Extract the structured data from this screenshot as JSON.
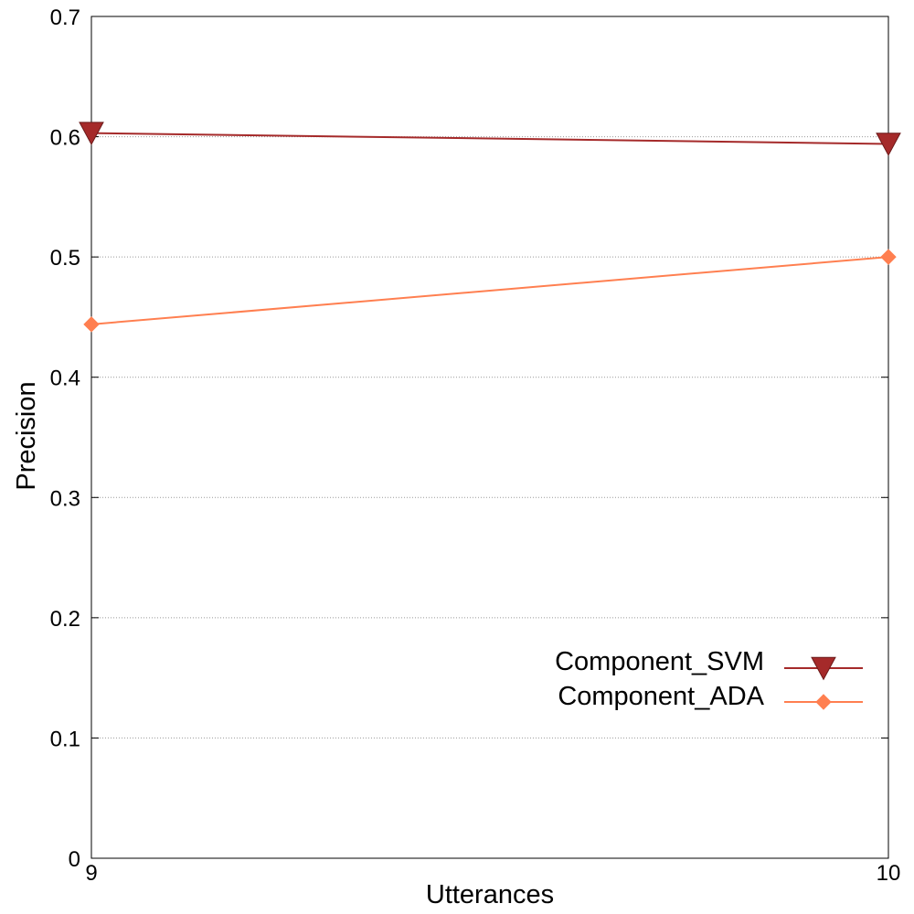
{
  "colors": {
    "svm": "#a52a2a",
    "ada": "#ff7f50",
    "grid": "#999999",
    "frame": "#000000"
  },
  "chart_data": {
    "type": "line",
    "title": "",
    "xlabel": "Utterances",
    "ylabel": "Precision",
    "x": [
      9,
      10
    ],
    "x_tick_labels": [
      "9",
      "10"
    ],
    "xlim": [
      9,
      10
    ],
    "ylim": [
      0,
      0.7
    ],
    "y_ticks": [
      0,
      0.1,
      0.2,
      0.3,
      0.4,
      0.5,
      0.6,
      0.7
    ],
    "y_tick_labels": [
      "0",
      "0.1",
      "0.2",
      "0.3",
      "0.4",
      "0.5",
      "0.6",
      "0.7"
    ],
    "grid": "horizontal dotted",
    "legend_position": "bottom-right",
    "series": [
      {
        "name": "Component_SVM",
        "values": [
          0.603,
          0.594
        ],
        "marker": "triangle-down"
      },
      {
        "name": "Component_ADA",
        "values": [
          0.444,
          0.5
        ],
        "marker": "diamond"
      }
    ]
  }
}
